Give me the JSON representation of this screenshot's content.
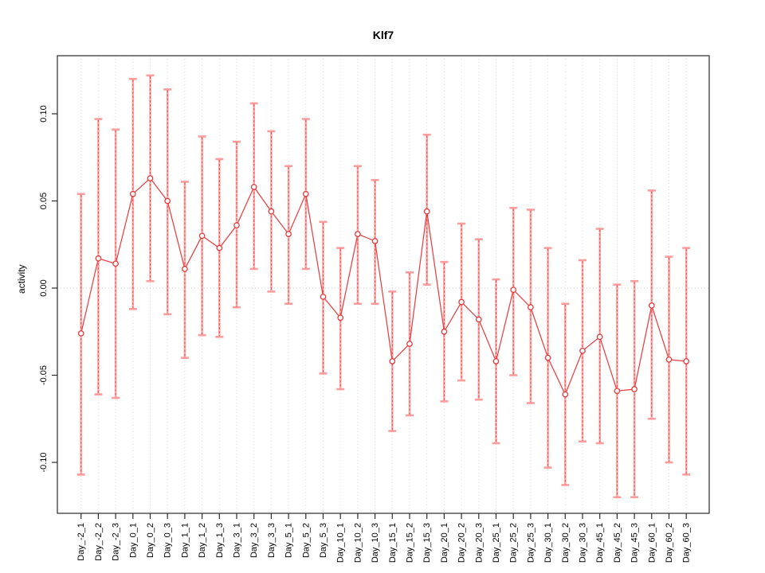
{
  "page": {
    "title": "Klf7"
  },
  "chart_data": {
    "type": "line",
    "title": "Klf7",
    "xlabel": "",
    "ylabel": "activity",
    "ylim": [
      -0.129,
      0.133
    ],
    "ytick_labels": [
      "0.10",
      "0.05",
      "0.00",
      "-0.05",
      "-0.10"
    ],
    "grid": "vertical dotted gridline at each category; dotted horizontal reference line at y=0; no legend",
    "marker": "open-circle",
    "categories": [
      "Day_-2_1",
      "Day_-2_2",
      "Day_-2_3",
      "Day_0_1",
      "Day_0_2",
      "Day_0_3",
      "Day_1_1",
      "Day_1_2",
      "Day_1_3",
      "Day_3_1",
      "Day_3_2",
      "Day_3_3",
      "Day_5_1",
      "Day_5_2",
      "Day_5_3",
      "Day_10_1",
      "Day_10_2",
      "Day_10_3",
      "Day_15_1",
      "Day_15_2",
      "Day_15_3",
      "Day_20_1",
      "Day_20_2",
      "Day_20_3",
      "Day_25_1",
      "Day_25_2",
      "Day_25_3",
      "Day_30_1",
      "Day_30_2",
      "Day_30_3",
      "Day_45_1",
      "Day_45_2",
      "Day_45_3",
      "Day_60_1",
      "Day_60_2",
      "Day_60_3"
    ],
    "series": [
      {
        "name": "activity",
        "values": [
          -0.026,
          0.017,
          0.014,
          0.054,
          0.063,
          0.05,
          0.011,
          0.03,
          0.023,
          0.036,
          0.058,
          0.044,
          0.031,
          0.054,
          -0.005,
          -0.017,
          0.031,
          0.027,
          -0.042,
          -0.032,
          0.044,
          -0.025,
          -0.008,
          -0.018,
          -0.042,
          -0.001,
          -0.011,
          -0.04,
          -0.061,
          -0.036,
          -0.028,
          -0.059,
          -0.058,
          -0.01,
          -0.041,
          -0.042
        ],
        "error_high": [
          0.054,
          0.097,
          0.091,
          0.12,
          0.122,
          0.114,
          0.061,
          0.087,
          0.074,
          0.084,
          0.106,
          0.09,
          0.07,
          0.097,
          0.038,
          0.023,
          0.07,
          0.062,
          -0.002,
          0.009,
          0.088,
          0.015,
          0.037,
          0.028,
          0.005,
          0.046,
          0.045,
          0.023,
          -0.009,
          0.016,
          0.034,
          0.002,
          0.004,
          0.056,
          0.018,
          0.023
        ],
        "error_low": [
          -0.107,
          -0.061,
          -0.063,
          -0.012,
          0.004,
          -0.015,
          -0.04,
          -0.027,
          -0.028,
          -0.011,
          0.011,
          -0.002,
          -0.009,
          0.011,
          -0.049,
          -0.058,
          -0.009,
          -0.009,
          -0.082,
          -0.073,
          0.002,
          -0.065,
          -0.053,
          -0.064,
          -0.089,
          -0.05,
          -0.066,
          -0.103,
          -0.113,
          -0.088,
          -0.089,
          -0.12,
          -0.12,
          -0.075,
          -0.1,
          -0.107
        ]
      }
    ],
    "colors": {
      "point_line": "#e8393b",
      "error_bar": "#ffadad",
      "error_cap": "#ff9c9c",
      "grid": "#dcdcdc",
      "axis": "#2a2a2a",
      "background": "#ffffff"
    }
  }
}
